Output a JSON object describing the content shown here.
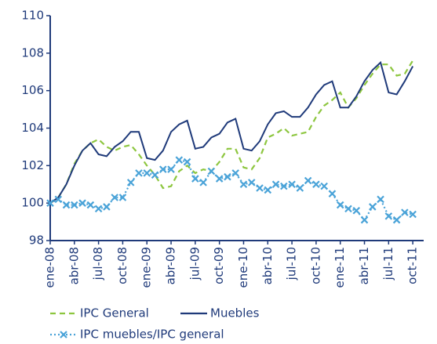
{
  "chart_data": {
    "type": "line",
    "categories": [
      "ene-08",
      null,
      null,
      "abr-08",
      null,
      null,
      "jul-08",
      null,
      null,
      "oct-08",
      null,
      null,
      "ene-09",
      null,
      null,
      "abr-09",
      null,
      null,
      "jul-09",
      null,
      null,
      "oct-09",
      null,
      null,
      "ene-10",
      null,
      null,
      "abr-10",
      null,
      null,
      "jul-10",
      null,
      null,
      "oct-10",
      null,
      null,
      "ene-11",
      null,
      null,
      "abr-11",
      null,
      null,
      "jul-11",
      null,
      null,
      "oct-11"
    ],
    "series": [
      {
        "name": "IPC General",
        "color": "#8dc63f",
        "style": "dashed",
        "values": [
          100.0,
          100.3,
          101.0,
          102.1,
          102.8,
          103.2,
          103.4,
          103.0,
          102.8,
          103.0,
          103.1,
          102.6,
          102.0,
          101.5,
          100.8,
          100.9,
          101.7,
          102.0,
          101.6,
          101.8,
          101.7,
          102.2,
          102.9,
          102.9,
          101.9,
          101.8,
          102.4,
          103.5,
          103.7,
          104.0,
          103.6,
          103.7,
          103.8,
          104.6,
          105.2,
          105.5,
          105.9,
          105.1,
          105.6,
          106.3,
          106.9,
          107.4,
          107.4,
          106.8,
          106.9,
          107.6
        ]
      },
      {
        "name": "Muebles",
        "color": "#1f3a7a",
        "style": "solid",
        "values": [
          100.0,
          100.3,
          101.0,
          102.0,
          102.8,
          103.2,
          102.6,
          102.5,
          103.0,
          103.3,
          103.8,
          103.8,
          102.4,
          102.3,
          102.8,
          103.8,
          104.2,
          104.4,
          102.9,
          103.0,
          103.5,
          103.7,
          104.3,
          104.5,
          102.9,
          102.8,
          103.3,
          104.2,
          104.8,
          104.9,
          104.6,
          104.6,
          105.1,
          105.8,
          106.3,
          106.5,
          105.1,
          105.1,
          105.7,
          106.5,
          107.1,
          107.5,
          105.9,
          105.8,
          106.5,
          107.3
        ]
      },
      {
        "name": "IPC muebles/IPC general",
        "color": "#4aa3d8",
        "style": "dotted-x",
        "values": [
          100.0,
          100.2,
          99.9,
          99.9,
          100.0,
          99.9,
          99.7,
          99.8,
          100.3,
          100.3,
          101.1,
          101.6,
          101.6,
          101.5,
          101.8,
          101.8,
          102.3,
          102.2,
          101.3,
          101.1,
          101.7,
          101.3,
          101.4,
          101.6,
          101.0,
          101.1,
          100.8,
          100.7,
          101.0,
          100.9,
          101.0,
          100.8,
          101.2,
          101.0,
          100.9,
          100.5,
          99.9,
          99.7,
          99.6,
          99.1,
          99.8,
          100.2,
          99.3,
          99.1,
          99.5,
          99.4
        ]
      }
    ],
    "ylim": [
      98,
      110
    ],
    "yticks": [
      98,
      100,
      102,
      104,
      106,
      108,
      110
    ],
    "grid": false
  }
}
